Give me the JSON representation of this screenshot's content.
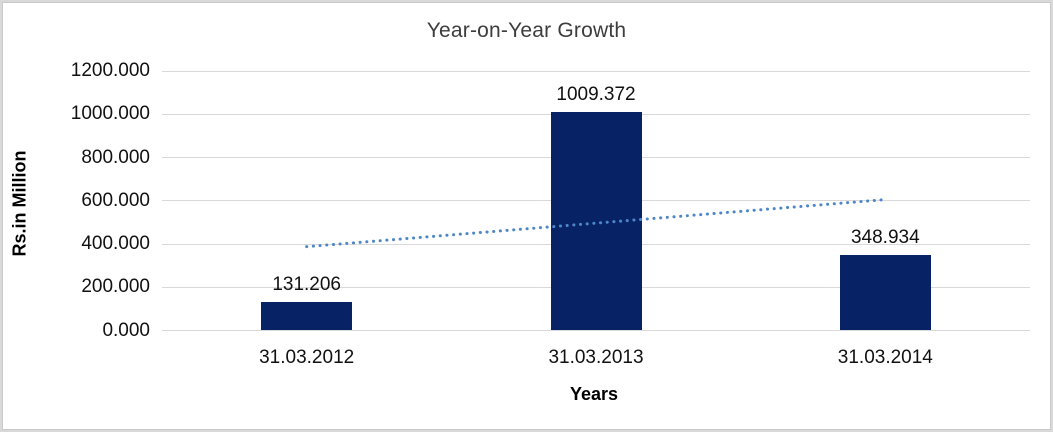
{
  "chart_data": {
    "type": "bar",
    "title": "Year-on-Year Growth",
    "xlabel": "Years",
    "ylabel": "Rs.in Million",
    "categories": [
      "31.03.2012",
      "31.03.2013",
      "31.03.2014"
    ],
    "values": [
      131.206,
      1009.372,
      348.934
    ],
    "data_labels": [
      "131.206",
      "1009.372",
      "348.934"
    ],
    "ylim": [
      0,
      1200
    ],
    "ytick_step": 200,
    "ytick_labels": [
      "0.000",
      "200.000",
      "400.000",
      "600.000",
      "800.000",
      "1000.000",
      "1200.000"
    ],
    "grid": true,
    "legend": "none",
    "trendline": {
      "type": "linear",
      "style": "dotted",
      "start_value": 387.6,
      "end_value": 605.4
    },
    "colors": {
      "bar_fill": "#072365",
      "trendline": "#4e87c7",
      "gridline": "#d9d9d9",
      "label_text": "#111111",
      "title_text": "#3d3d3d",
      "frame_border": "#d9d9d9"
    }
  }
}
